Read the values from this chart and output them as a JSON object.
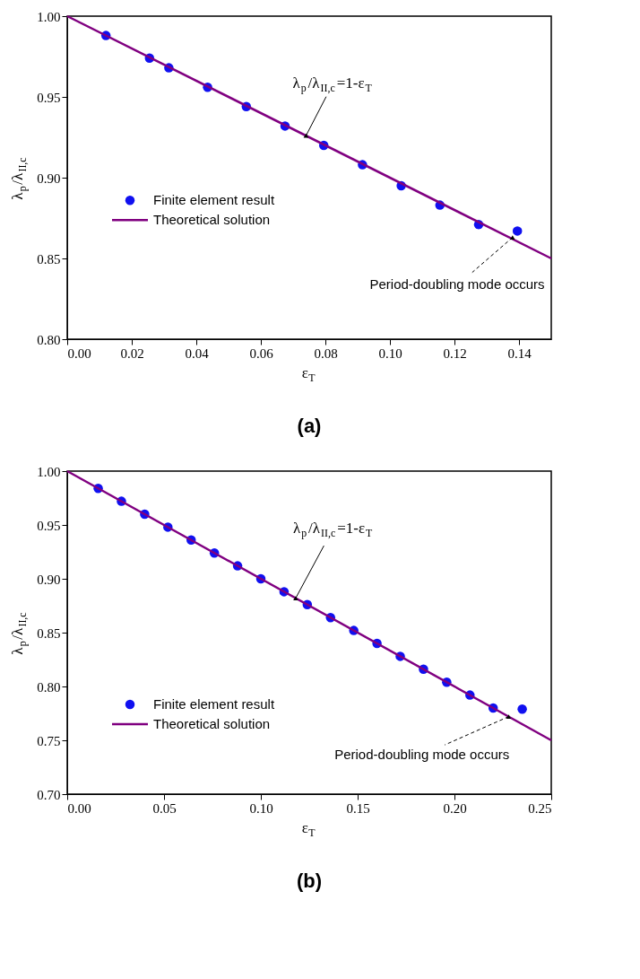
{
  "chart_data": [
    {
      "type": "scatter",
      "xlabel": "ε$_{T}$",
      "ylabel": "λ$_{p}$/λ$_{II,c}$",
      "xlim": [
        0,
        0.15
      ],
      "xticks": [
        {
          "value": 0,
          "label": "0.00"
        },
        0.02,
        0.04,
        0.06,
        0.08,
        {
          "value": 0.1,
          "label": "0.10"
        },
        0.12,
        0.14
      ],
      "ylim": [
        0.8,
        1.0
      ],
      "yticks": [
        {
          "value": 0.8,
          "label": "0.80"
        },
        0.85,
        {
          "value": 0.9,
          "label": "0.90"
        },
        0.95,
        {
          "value": 1.0,
          "label": "1.00"
        }
      ],
      "grid": false,
      "legend": "left",
      "series": [
        {
          "name": "Finite element result",
          "marker": "circle",
          "color": "#1010f0",
          "x": [
            0.012,
            0.0255,
            0.0315,
            0.0435,
            0.0555,
            0.0675,
            0.0795,
            0.0915,
            0.1035,
            0.1155,
            0.1275,
            0.1395
          ],
          "values": [
            0.988,
            0.974,
            0.968,
            0.956,
            0.944,
            0.932,
            0.92,
            0.908,
            0.895,
            0.883,
            0.871,
            0.867
          ]
        },
        {
          "name": "Theoretical solution",
          "type": "line",
          "line_style": "solid",
          "color": "#800080",
          "x": [
            0,
            0.15
          ],
          "values": [
            1.0,
            0.85
          ]
        }
      ],
      "annotations": [
        {
          "text": "λ$_{p}$/λ$_{II,c}$=1-ε$_{T}$",
          "x": 0.074,
          "y": 0.926
        },
        {
          "text": "Period-doubling mode occurs",
          "x": 0.138,
          "y": 0.863
        },
        "(a)"
      ]
    },
    {
      "type": "scatter",
      "xlabel": "ε$_{T}$",
      "ylabel": "λ$_{p}$/λ$_{II,c}$",
      "xlim": [
        0,
        0.25
      ],
      "xticks": [
        {
          "value": 0,
          "label": "0.00"
        },
        0.05,
        {
          "value": 0.1,
          "label": "0.10"
        },
        0.15,
        {
          "value": 0.2,
          "label": "0.20"
        },
        0.25
      ],
      "ylim": [
        0.7,
        1.0
      ],
      "yticks": [
        {
          "value": 0.7,
          "label": "0.70"
        },
        0.75,
        {
          "value": 0.8,
          "label": "0.80"
        },
        0.85,
        {
          "value": 0.9,
          "label": "0.90"
        },
        0.95,
        {
          "value": 1.0,
          "label": "1.00"
        }
      ],
      "grid": false,
      "legend": "bottom left",
      "series": [
        {
          "name": "Finite element result",
          "marker": "circle",
          "color": "#1010f0",
          "x": [
            0.016,
            0.028,
            0.04,
            0.052,
            0.064,
            0.076,
            0.088,
            0.1,
            0.112,
            0.124,
            0.136,
            0.148,
            0.16,
            0.172,
            0.184,
            0.196,
            0.208,
            0.22,
            0.235
          ],
          "values": [
            0.984,
            0.972,
            0.96,
            0.948,
            0.936,
            0.924,
            0.912,
            0.9,
            0.888,
            0.876,
            0.864,
            0.852,
            0.84,
            0.828,
            0.816,
            0.804,
            0.792,
            0.78,
            0.779
          ]
        },
        {
          "name": "Theoretical solution",
          "type": "line",
          "line_style": "solid",
          "color": "#800080",
          "x": [
            0,
            0.25
          ],
          "values": [
            1.0,
            0.75
          ]
        }
      ],
      "annotations": [
        {
          "text": "λ$_{p}$/λ$_{II,c}$=1-ε$_{T}$",
          "x": 0.118,
          "y": 0.882
        },
        {
          "text": "Period-doubling mode occurs",
          "x": 0.228,
          "y": 0.772
        },
        "(b)"
      ]
    }
  ]
}
